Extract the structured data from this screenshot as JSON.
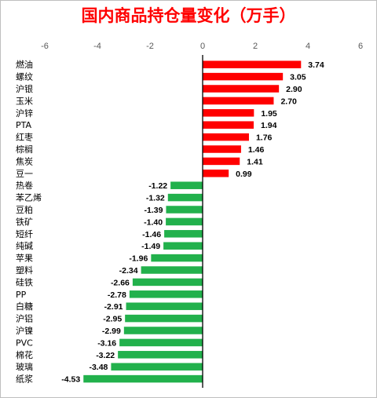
{
  "chart_data": {
    "type": "bar",
    "orientation": "horizontal",
    "title": "国内商品持仓量变化（万手）",
    "categories": [
      "燃油",
      "螺纹",
      "沪银",
      "玉米",
      "沪锌",
      "PTA",
      "红枣",
      "棕榈",
      "焦炭",
      "豆一",
      "热卷",
      "苯乙烯",
      "豆粕",
      "铁矿",
      "短纤",
      "纯碱",
      "苹果",
      "塑料",
      "硅铁",
      "PP",
      "白糖",
      "沪铝",
      "沪镍",
      "PVC",
      "棉花",
      "玻璃",
      "纸浆"
    ],
    "values": [
      3.74,
      3.05,
      2.9,
      2.7,
      1.95,
      1.94,
      1.76,
      1.46,
      1.41,
      0.99,
      -1.22,
      -1.32,
      -1.39,
      -1.4,
      -1.46,
      -1.49,
      -1.96,
      -2.34,
      -2.66,
      -2.78,
      -2.91,
      -2.95,
      -2.99,
      -3.16,
      -3.22,
      -3.48,
      -4.53
    ],
    "value_labels": [
      "3.74",
      "3.05",
      "2.90",
      "2.70",
      "1.95",
      "1.94",
      "1.76",
      "1.46",
      "1.41",
      "0.99",
      "-1.22",
      "-1.32",
      "-1.39",
      "-1.40",
      "-1.46",
      "-1.49",
      "-1.96",
      "-2.34",
      "-2.66",
      "-2.78",
      "-2.91",
      "-2.95",
      "-2.99",
      "-3.16",
      "-3.22",
      "-3.48",
      "-4.53"
    ],
    "xlim": [
      -6,
      6
    ],
    "xticks": [
      -6,
      -4,
      -2,
      0,
      2,
      4,
      6
    ],
    "xtick_labels": [
      "-6",
      "-4",
      "-2",
      "0",
      "2",
      "4",
      "6"
    ],
    "axis_position": "top",
    "grid": false,
    "legend": false,
    "colors": {
      "title": "#ff0000",
      "positive": "#ff0000",
      "negative": "#22b14c"
    }
  }
}
